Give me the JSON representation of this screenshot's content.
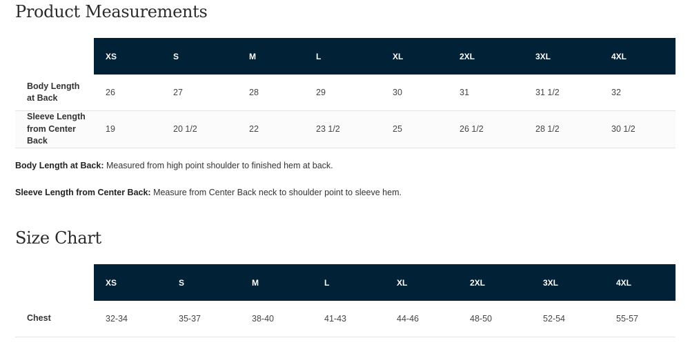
{
  "measurements": {
    "title": "Product Measurements",
    "sizes": [
      "XS",
      "S",
      "M",
      "L",
      "XL",
      "2XL",
      "3XL",
      "4XL"
    ],
    "rows": [
      {
        "label": "Body Length at Back",
        "values": [
          "26",
          "27",
          "28",
          "29",
          "30",
          "31",
          "31 1/2",
          "32"
        ]
      },
      {
        "label": "Sleeve Length from Center Back",
        "values": [
          "19",
          "20 1/2",
          "22",
          "23 1/2",
          "25",
          "26 1/2",
          "28 1/2",
          "30 1/2"
        ]
      }
    ],
    "notes": [
      {
        "term": "Body Length at Back:",
        "text": " Measured from high point shoulder to finished hem at back."
      },
      {
        "term": "Sleeve Length from Center Back:",
        "text": " Measure from Center Back neck to shoulder point to sleeve hem."
      }
    ]
  },
  "size_chart": {
    "title": "Size Chart",
    "sizes": [
      "XS",
      "S",
      "M",
      "L",
      "XL",
      "2XL",
      "3XL",
      "4XL"
    ],
    "rows": [
      {
        "label": "Chest",
        "values": [
          "32-34",
          "35-37",
          "38-40",
          "41-43",
          "44-46",
          "48-50",
          "52-54",
          "55-57"
        ]
      }
    ]
  },
  "colors": {
    "header_bg": "#012137",
    "header_text": "#ffffff"
  }
}
